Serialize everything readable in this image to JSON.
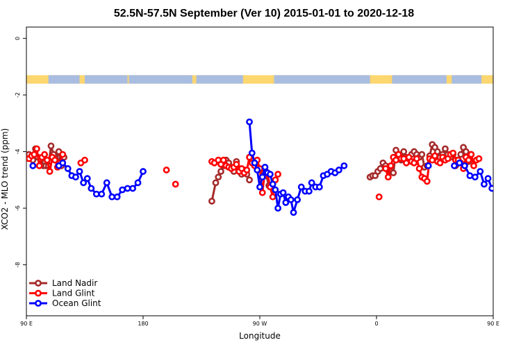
{
  "chart_data": {
    "type": "line",
    "title": "52.5N-57.5N September (Ver 10)   2015-01-01 to 2020-12-18",
    "xlabel": "Longitude",
    "ylabel": "XCO2 - MLO trend (ppm)",
    "xlim": [
      90,
      450
    ],
    "ylim": [
      -9.8,
      0.4
    ],
    "grid": false,
    "legend_position": "bottom-left",
    "x_tick_values": [
      90,
      180,
      270,
      360,
      450
    ],
    "x_tick_labels": [
      "90 E",
      "180",
      "90 W",
      "0",
      "90 E"
    ],
    "y_tick_values": [
      0,
      -2,
      -4,
      -6,
      -8
    ],
    "y_tick_labels": [
      "0",
      "-2",
      "-4",
      "-6",
      "-8"
    ],
    "land_mask_band": {
      "y_top": -1.3,
      "y_bottom": -1.6,
      "land_color": "#fcd66f",
      "ocean_color": "#a9bde0"
    },
    "series": [
      {
        "name": "Land Nadir",
        "color": "#a52a2a",
        "segments": [
          [
            [
              92,
              -4.1
            ],
            [
              95,
              -4.3
            ],
            [
              97,
              -3.9
            ],
            [
              99,
              -4.2
            ],
            [
              101,
              -4.3
            ],
            [
              103,
              -4.5
            ],
            [
              105,
              -4.5
            ],
            [
              107,
              -4.5
            ],
            [
              109,
              -3.8
            ],
            [
              111,
              -4.1
            ],
            [
              113,
              -4.3
            ],
            [
              115,
              -4.0
            ],
            [
              117,
              -4.5
            ],
            [
              119,
              -4.2
            ]
          ],
          [
            [
              233,
              -5.75
            ],
            [
              236,
              -5.1
            ],
            [
              238,
              -4.9
            ],
            [
              240,
              -4.7
            ],
            [
              242,
              -4.5
            ],
            [
              244,
              -4.3
            ],
            [
              246,
              -4.4
            ],
            [
              248,
              -4.55
            ],
            [
              250,
              -4.7
            ],
            [
              252,
              -4.35
            ],
            [
              254,
              -4.6
            ],
            [
              256,
              -4.8
            ],
            [
              258,
              -4.65
            ],
            [
              260,
              -4.8
            ],
            [
              262,
              -5.0
            ]
          ],
          [
            [
              273,
              -4.7
            ],
            [
              275,
              -4.85
            ],
            [
              277,
              -5.2
            ]
          ],
          [
            [
              355,
              -4.9
            ],
            [
              357,
              -4.85
            ],
            [
              359,
              -4.85
            ],
            [
              361,
              -4.7
            ],
            [
              363,
              -4.6
            ],
            [
              365,
              -4.4
            ],
            [
              367,
              -4.5
            ],
            [
              369,
              -4.6
            ],
            [
              371,
              -4.7
            ],
            [
              373,
              -4.75
            ],
            [
              375,
              -3.95
            ],
            [
              377,
              -4.1
            ],
            [
              379,
              -4.3
            ],
            [
              381,
              -4.0
            ],
            [
              383,
              -4.2
            ],
            [
              385,
              -4.3
            ],
            [
              387,
              -4.1
            ],
            [
              389,
              -4.0
            ],
            [
              391,
              -4.1
            ],
            [
              393,
              -4.2
            ],
            [
              395,
              -4.1
            ],
            [
              397,
              -4.55
            ],
            [
              399,
              -4.5
            ],
            [
              401,
              -4.15
            ],
            [
              403,
              -3.75
            ],
            [
              405,
              -3.85
            ],
            [
              407,
              -4.0
            ],
            [
              409,
              -4.2
            ],
            [
              411,
              -4.1
            ],
            [
              413,
              -3.9
            ],
            [
              415,
              -4.1
            ],
            [
              417,
              -4.2
            ],
            [
              419,
              -4.1
            ],
            [
              421,
              -4.5
            ],
            [
              423,
              -4.3
            ],
            [
              425,
              -4.1
            ],
            [
              427,
              -3.85
            ],
            [
              429,
              -4.0
            ],
            [
              431,
              -4.35
            ],
            [
              433,
              -4.1
            ]
          ]
        ]
      },
      {
        "name": "Land Glint",
        "color": "#ff0000",
        "segments": [
          [
            [
              92,
              -4.25
            ],
            [
              94,
              -4.15
            ],
            [
              96,
              -4.1
            ],
            [
              98,
              -3.9
            ],
            [
              100,
              -4.5
            ],
            [
              102,
              -4.2
            ],
            [
              104,
              -4.1
            ],
            [
              106,
              -4.3
            ],
            [
              108,
              -4.7
            ],
            [
              110,
              -4.2
            ],
            [
              112,
              -4.3
            ],
            [
              114,
              -4.55
            ],
            [
              116,
              -4.4
            ],
            [
              118,
              -4.1
            ]
          ],
          [
            [
              132,
              -4.4
            ],
            [
              135,
              -4.3
            ]
          ],
          [
            [
              198,
              -4.65
            ]
          ],
          [
            [
              205,
              -5.15
            ]
          ],
          [
            [
              233,
              -4.35
            ],
            [
              235,
              -4.4
            ],
            [
              238,
              -4.3
            ],
            [
              240,
              -4.45
            ],
            [
              242,
              -4.3
            ],
            [
              244,
              -4.5
            ],
            [
              246,
              -4.55
            ],
            [
              248,
              -4.6
            ],
            [
              250,
              -4.55
            ],
            [
              252,
              -4.45
            ],
            [
              254,
              -4.7
            ],
            [
              256,
              -4.6
            ],
            [
              258,
              -4.75
            ],
            [
              260,
              -4.65
            ],
            [
              262,
              -4.2
            ],
            [
              264,
              -4.4
            ],
            [
              266,
              -4.5
            ],
            [
              268,
              -4.3
            ],
            [
              270,
              -4.6
            ],
            [
              272,
              -5.45
            ],
            [
              274,
              -4.65
            ],
            [
              276,
              -4.8
            ],
            [
              278,
              -5.25
            ],
            [
              280,
              -5.6
            ],
            [
              282,
              -5.0
            ],
            [
              284,
              -4.8
            ]
          ],
          [
            [
              362,
              -5.6
            ]
          ],
          [
            [
              367,
              -4.6
            ],
            [
              369,
              -4.9
            ],
            [
              371,
              -4.5
            ],
            [
              373,
              -4.2
            ],
            [
              375,
              -4.3
            ],
            [
              377,
              -4.1
            ],
            [
              379,
              -4.25
            ],
            [
              381,
              -4.25
            ],
            [
              383,
              -4.4
            ],
            [
              385,
              -4.2
            ],
            [
              387,
              -4.35
            ],
            [
              389,
              -4.4
            ],
            [
              391,
              -4.25
            ],
            [
              393,
              -4.6
            ],
            [
              395,
              -4.9
            ],
            [
              397,
              -4.95
            ],
            [
              399,
              -5.05
            ],
            [
              401,
              -4.25
            ],
            [
              403,
              -4.3
            ],
            [
              405,
              -4.15
            ],
            [
              407,
              -4.35
            ],
            [
              409,
              -4.4
            ],
            [
              411,
              -4.2
            ],
            [
              413,
              -4.3
            ],
            [
              415,
              -4.25
            ],
            [
              417,
              -4.1
            ],
            [
              419,
              -4.05
            ],
            [
              421,
              -4.3
            ],
            [
              423,
              -4.3
            ],
            [
              425,
              -4.4
            ],
            [
              427,
              -4.6
            ],
            [
              429,
              -4.2
            ],
            [
              431,
              -4.3
            ],
            [
              433,
              -4.1
            ],
            [
              435,
              -4.5
            ]
          ],
          [
            [
              437,
              -4.3
            ],
            [
              439,
              -4.25
            ]
          ]
        ]
      },
      {
        "name": "Ocean Glint",
        "color": "#0000ff",
        "segments": [
          [
            [
              95,
              -4.5
            ]
          ],
          [
            [
              115,
              -4.5
            ],
            [
              118,
              -4.4
            ],
            [
              122,
              -4.6
            ],
            [
              125,
              -4.85
            ],
            [
              128,
              -4.9
            ],
            [
              131,
              -4.7
            ],
            [
              134,
              -5.1
            ],
            [
              137,
              -4.95
            ],
            [
              140,
              -5.3
            ],
            [
              144,
              -5.5
            ],
            [
              148,
              -5.5
            ],
            [
              152,
              -5.1
            ],
            [
              156,
              -5.6
            ],
            [
              160,
              -5.6
            ],
            [
              164,
              -5.35
            ],
            [
              168,
              -5.3
            ],
            [
              172,
              -5.3
            ],
            [
              176,
              -5.1
            ],
            [
              180,
              -4.7
            ]
          ],
          [
            [
              262,
              -2.95
            ],
            [
              264,
              -4.05
            ],
            [
              266,
              -4.4
            ],
            [
              268,
              -4.65
            ],
            [
              270,
              -5.25
            ],
            [
              272,
              -4.9
            ],
            [
              274,
              -4.55
            ],
            [
              276,
              -4.75
            ],
            [
              278,
              -4.8
            ],
            [
              280,
              -5.15
            ],
            [
              282,
              -5.35
            ],
            [
              284,
              -6.0
            ],
            [
              286,
              -5.5
            ],
            [
              288,
              -5.45
            ],
            [
              290,
              -5.8
            ],
            [
              292,
              -5.6
            ],
            [
              294,
              -5.7
            ],
            [
              296,
              -6.15
            ],
            [
              299,
              -5.7
            ],
            [
              302,
              -5.25
            ],
            [
              305,
              -5.4
            ],
            [
              308,
              -5.4
            ],
            [
              310,
              -5.1
            ],
            [
              313,
              -5.25
            ],
            [
              316,
              -5.25
            ],
            [
              319,
              -4.85
            ],
            [
              322,
              -4.8
            ],
            [
              325,
              -4.7
            ],
            [
              328,
              -4.75
            ],
            [
              331,
              -4.65
            ],
            [
              335,
              -4.5
            ]
          ],
          [
            [
              400,
              -4.5
            ]
          ],
          [
            [
              420,
              -4.5
            ],
            [
              424,
              -4.4
            ],
            [
              428,
              -4.5
            ],
            [
              432,
              -4.85
            ],
            [
              436,
              -4.9
            ],
            [
              440,
              -4.7
            ],
            [
              443,
              -5.15
            ],
            [
              446,
              -4.95
            ],
            [
              449,
              -5.3
            ]
          ]
        ]
      }
    ]
  }
}
